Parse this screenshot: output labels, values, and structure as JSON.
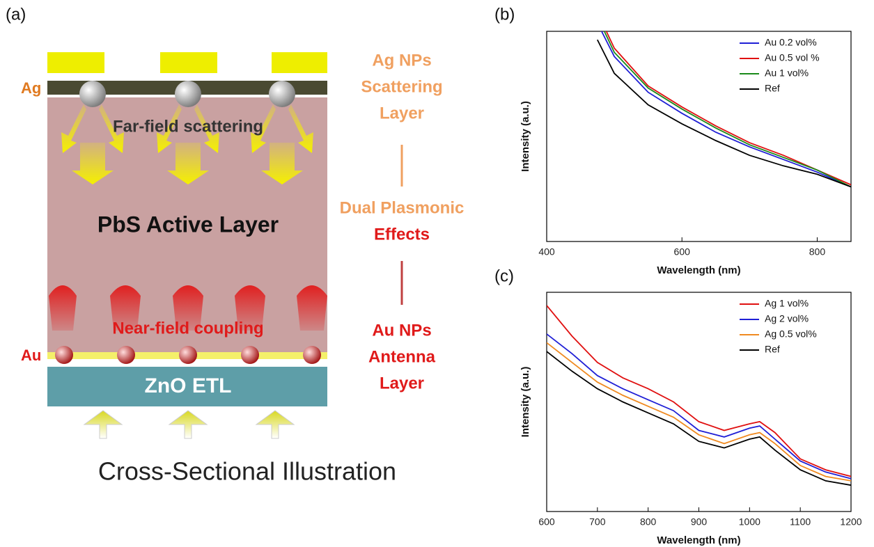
{
  "diagram": {
    "panel_label": "(a)",
    "ag_label": "Ag",
    "au_label": "Au",
    "far_field": "Far-field scattering",
    "active_layer": "PbS Active Layer",
    "near_field": "Near-field coupling",
    "etl": "ZnO ETL",
    "side_labels": [
      [
        "Ag NPs",
        "Scattering",
        "Layer"
      ],
      [
        "Dual Plasmonic",
        "Effects"
      ],
      [
        "Au NPs",
        "Antenna",
        "Layer"
      ]
    ],
    "caption": "Cross-Sectional Illustration"
  },
  "chart_data": [
    {
      "type": "line",
      "panel_label": "(b)",
      "x_label": "Wavelength (nm)",
      "y_label": "Intensity (a.u.)",
      "x": [
        475,
        500,
        550,
        600,
        650,
        700,
        750,
        800,
        850
      ],
      "xlim": [
        400,
        850
      ],
      "xticks": [
        400,
        600,
        800
      ],
      "ylim": [
        0,
        100
      ],
      "legend": "upper right",
      "series": [
        {
          "name": "Au 0.2 vol%",
          "color": "#1f1fd6",
          "values": [
            104,
            88,
            71,
            61,
            52,
            45,
            39,
            33,
            26
          ]
        },
        {
          "name": "Au 0.5 vol %",
          "color": "#e01010",
          "values": [
            109,
            92,
            74,
            64,
            55,
            47,
            41,
            34,
            27
          ]
        },
        {
          "name": "Au 1 vol%",
          "color": "#1a8a1a",
          "values": [
            107,
            90,
            73,
            63,
            54,
            46,
            40,
            34,
            26
          ]
        },
        {
          "name": "Ref",
          "color": "#000000",
          "values": [
            96,
            80,
            65,
            56,
            48,
            41,
            36,
            32,
            26
          ]
        }
      ]
    },
    {
      "type": "line",
      "panel_label": "(c)",
      "x_label": "Wavelength (nm)",
      "y_label": "Intensity (a.u.)",
      "x": [
        600,
        650,
        700,
        750,
        800,
        850,
        900,
        950,
        1000,
        1020,
        1050,
        1100,
        1150,
        1200
      ],
      "xlim": [
        600,
        1200
      ],
      "xticks": [
        600,
        700,
        800,
        900,
        1000,
        1100,
        1200
      ],
      "ylim": [
        0,
        100
      ],
      "legend": "upper right",
      "series": [
        {
          "name": "Ag 1 vol%",
          "color": "#e01010",
          "values": [
            94,
            80,
            68,
            61,
            56,
            50,
            41,
            37,
            40,
            41,
            36,
            24,
            19,
            16
          ]
        },
        {
          "name": "Ag 2 vol%",
          "color": "#1f1fd6",
          "values": [
            81,
            72,
            62,
            56,
            51,
            46,
            37,
            34,
            38,
            39,
            33,
            23,
            18,
            15
          ]
        },
        {
          "name": "Ag 0.5 vol%",
          "color": "#f08a20",
          "values": [
            77,
            68,
            59,
            53,
            48,
            43,
            35,
            31,
            35,
            36,
            31,
            21,
            16,
            14
          ]
        },
        {
          "name": "Ref",
          "color": "#000000",
          "values": [
            73,
            64,
            56,
            50,
            45,
            40,
            32,
            29,
            33,
            34,
            28,
            19,
            14,
            12
          ]
        }
      ]
    }
  ]
}
